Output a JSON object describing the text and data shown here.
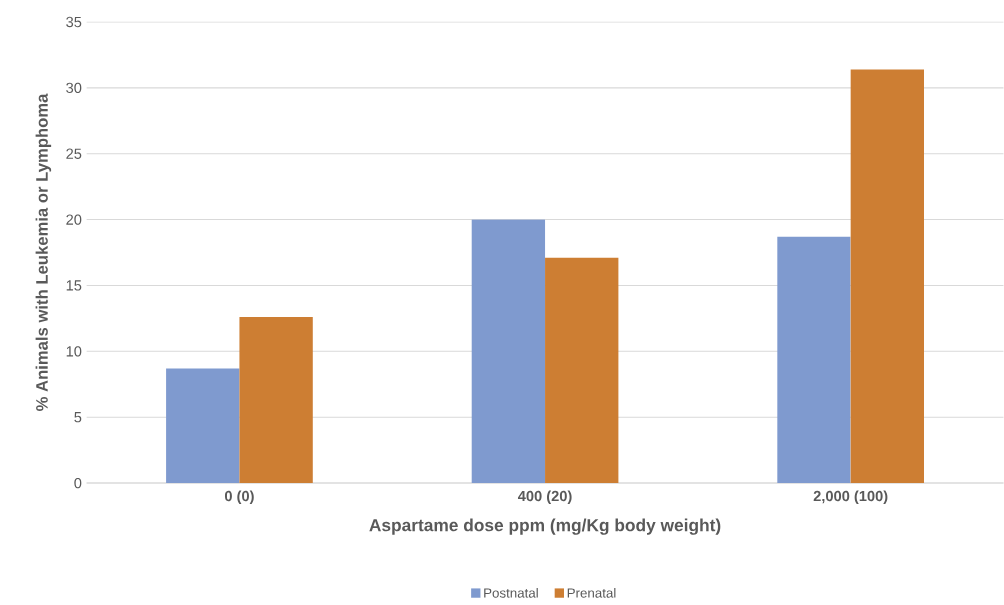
{
  "chart_data": {
    "type": "bar",
    "categories": [
      "0 (0)",
      "400 (20)",
      "2,000 (100)"
    ],
    "xlabel": "Aspartame dose ppm (mg/Kg body weight)",
    "ylabel": "% Animals with Leukemia or Lymphoma",
    "series": [
      {
        "name": "Postnatal",
        "color": "#7f9acf",
        "values": [
          8.7,
          20.0,
          18.7
        ]
      },
      {
        "name": "Prenatal",
        "color": "#cd7e33",
        "values": [
          12.6,
          17.1,
          31.4
        ]
      }
    ],
    "ylim": [
      0,
      35
    ],
    "yticks": [
      0,
      5,
      10,
      15,
      20,
      25,
      30,
      35
    ],
    "grid": "y",
    "legend": "bottom"
  }
}
